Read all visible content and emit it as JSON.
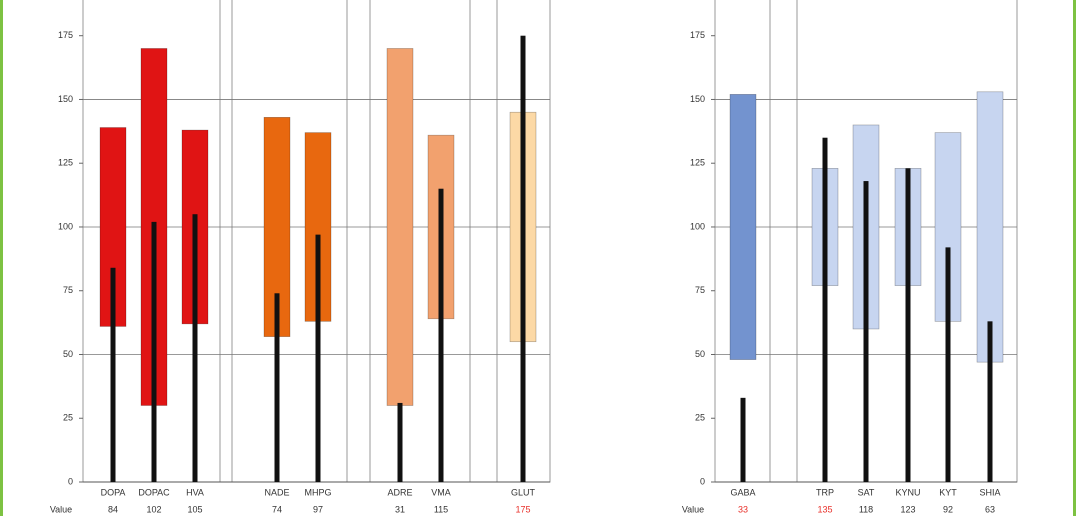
{
  "chart_data": [
    {
      "type": "range-bar",
      "ylim": [
        0,
        189
      ],
      "yticks": [
        0,
        25,
        50,
        75,
        100,
        125,
        150,
        175
      ],
      "row_label": "Value",
      "groups": [
        {
          "color": "#e01414",
          "categories": [
            "DOPA",
            "DOPAC",
            "HVA"
          ],
          "low": [
            61,
            30,
            62
          ],
          "high": [
            139,
            170,
            138
          ],
          "values": [
            84,
            102,
            105
          ]
        },
        {
          "color": "#e8680f",
          "categories": [
            "NADE",
            "MHPG"
          ],
          "low": [
            57,
            63
          ],
          "high": [
            143,
            137
          ],
          "values": [
            74,
            97
          ]
        },
        {
          "color": "#f2a16e",
          "categories": [
            "ADRE",
            "VMA"
          ],
          "low": [
            30,
            64
          ],
          "high": [
            170,
            136
          ],
          "values": [
            31,
            115
          ]
        },
        {
          "color": "#fcd9a6",
          "categories": [
            "GLUT"
          ],
          "low": [
            55
          ],
          "high": [
            145
          ],
          "values": [
            175
          ]
        }
      ]
    },
    {
      "type": "range-bar",
      "ylim": [
        0,
        189
      ],
      "yticks": [
        0,
        25,
        50,
        75,
        100,
        125,
        150,
        175
      ],
      "row_label": "Value",
      "groups": [
        {
          "color": "#7393cf",
          "categories": [
            "GABA"
          ],
          "low": [
            48
          ],
          "high": [
            152
          ],
          "values": [
            33
          ]
        },
        {
          "color": "#c7d5f0",
          "categories": [
            "TRP",
            "SAT",
            "KYNU",
            "KYT",
            "SHIA"
          ],
          "low": [
            77,
            60,
            77,
            63,
            47
          ],
          "high": [
            123,
            140,
            123,
            137,
            153
          ],
          "values": [
            135,
            118,
            123,
            92,
            63
          ]
        }
      ]
    }
  ]
}
